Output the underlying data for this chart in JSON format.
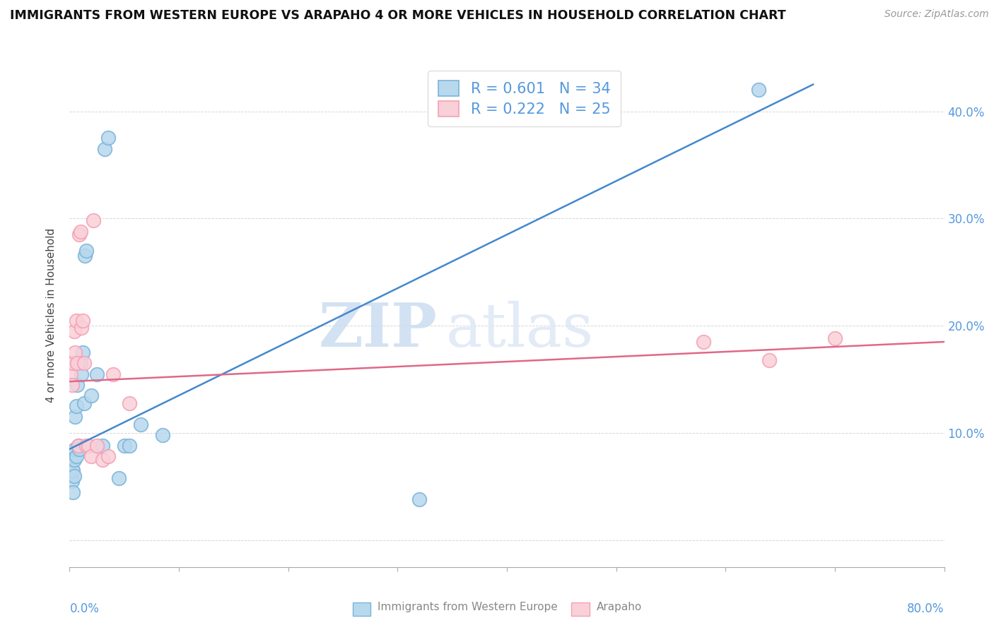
{
  "title": "IMMIGRANTS FROM WESTERN EUROPE VS ARAPAHO 4 OR MORE VEHICLES IN HOUSEHOLD CORRELATION CHART",
  "source": "Source: ZipAtlas.com",
  "ylabel": "4 or more Vehicles in Household",
  "xmin": 0.0,
  "xmax": 0.8,
  "ymin": -0.025,
  "ymax": 0.445,
  "watermark_zip": "ZIP",
  "watermark_atlas": "atlas",
  "blue_color": "#7ab4d8",
  "blue_face": "#b8d8ee",
  "pink_color": "#f4a0b5",
  "pink_face": "#fad0d8",
  "line_blue": "#4488cc",
  "line_pink": "#e06888",
  "blue_scatter": [
    [
      0.001,
      0.075
    ],
    [
      0.002,
      0.065
    ],
    [
      0.002,
      0.055
    ],
    [
      0.003,
      0.065
    ],
    [
      0.003,
      0.045
    ],
    [
      0.004,
      0.06
    ],
    [
      0.004,
      0.075
    ],
    [
      0.005,
      0.115
    ],
    [
      0.005,
      0.085
    ],
    [
      0.006,
      0.125
    ],
    [
      0.006,
      0.078
    ],
    [
      0.007,
      0.145
    ],
    [
      0.007,
      0.165
    ],
    [
      0.008,
      0.088
    ],
    [
      0.009,
      0.085
    ],
    [
      0.009,
      0.165
    ],
    [
      0.01,
      0.165
    ],
    [
      0.011,
      0.155
    ],
    [
      0.012,
      0.175
    ],
    [
      0.013,
      0.128
    ],
    [
      0.014,
      0.265
    ],
    [
      0.015,
      0.27
    ],
    [
      0.02,
      0.135
    ],
    [
      0.025,
      0.155
    ],
    [
      0.03,
      0.088
    ],
    [
      0.032,
      0.365
    ],
    [
      0.035,
      0.375
    ],
    [
      0.045,
      0.058
    ],
    [
      0.05,
      0.088
    ],
    [
      0.055,
      0.088
    ],
    [
      0.065,
      0.108
    ],
    [
      0.085,
      0.098
    ],
    [
      0.63,
      0.42
    ],
    [
      0.32,
      0.038
    ]
  ],
  "pink_scatter": [
    [
      0.001,
      0.155
    ],
    [
      0.002,
      0.145
    ],
    [
      0.003,
      0.165
    ],
    [
      0.004,
      0.195
    ],
    [
      0.005,
      0.175
    ],
    [
      0.006,
      0.205
    ],
    [
      0.007,
      0.165
    ],
    [
      0.008,
      0.088
    ],
    [
      0.009,
      0.285
    ],
    [
      0.01,
      0.288
    ],
    [
      0.011,
      0.198
    ],
    [
      0.012,
      0.205
    ],
    [
      0.013,
      0.165
    ],
    [
      0.015,
      0.088
    ],
    [
      0.017,
      0.088
    ],
    [
      0.02,
      0.078
    ],
    [
      0.022,
      0.298
    ],
    [
      0.025,
      0.088
    ],
    [
      0.03,
      0.075
    ],
    [
      0.035,
      0.078
    ],
    [
      0.04,
      0.155
    ],
    [
      0.055,
      0.128
    ],
    [
      0.58,
      0.185
    ],
    [
      0.64,
      0.168
    ],
    [
      0.7,
      0.188
    ]
  ],
  "blue_trendline_x": [
    0.0,
    0.68
  ],
  "blue_trendline_y": [
    0.085,
    0.425
  ],
  "pink_trendline_x": [
    0.0,
    0.8
  ],
  "pink_trendline_y": [
    0.148,
    0.185
  ]
}
